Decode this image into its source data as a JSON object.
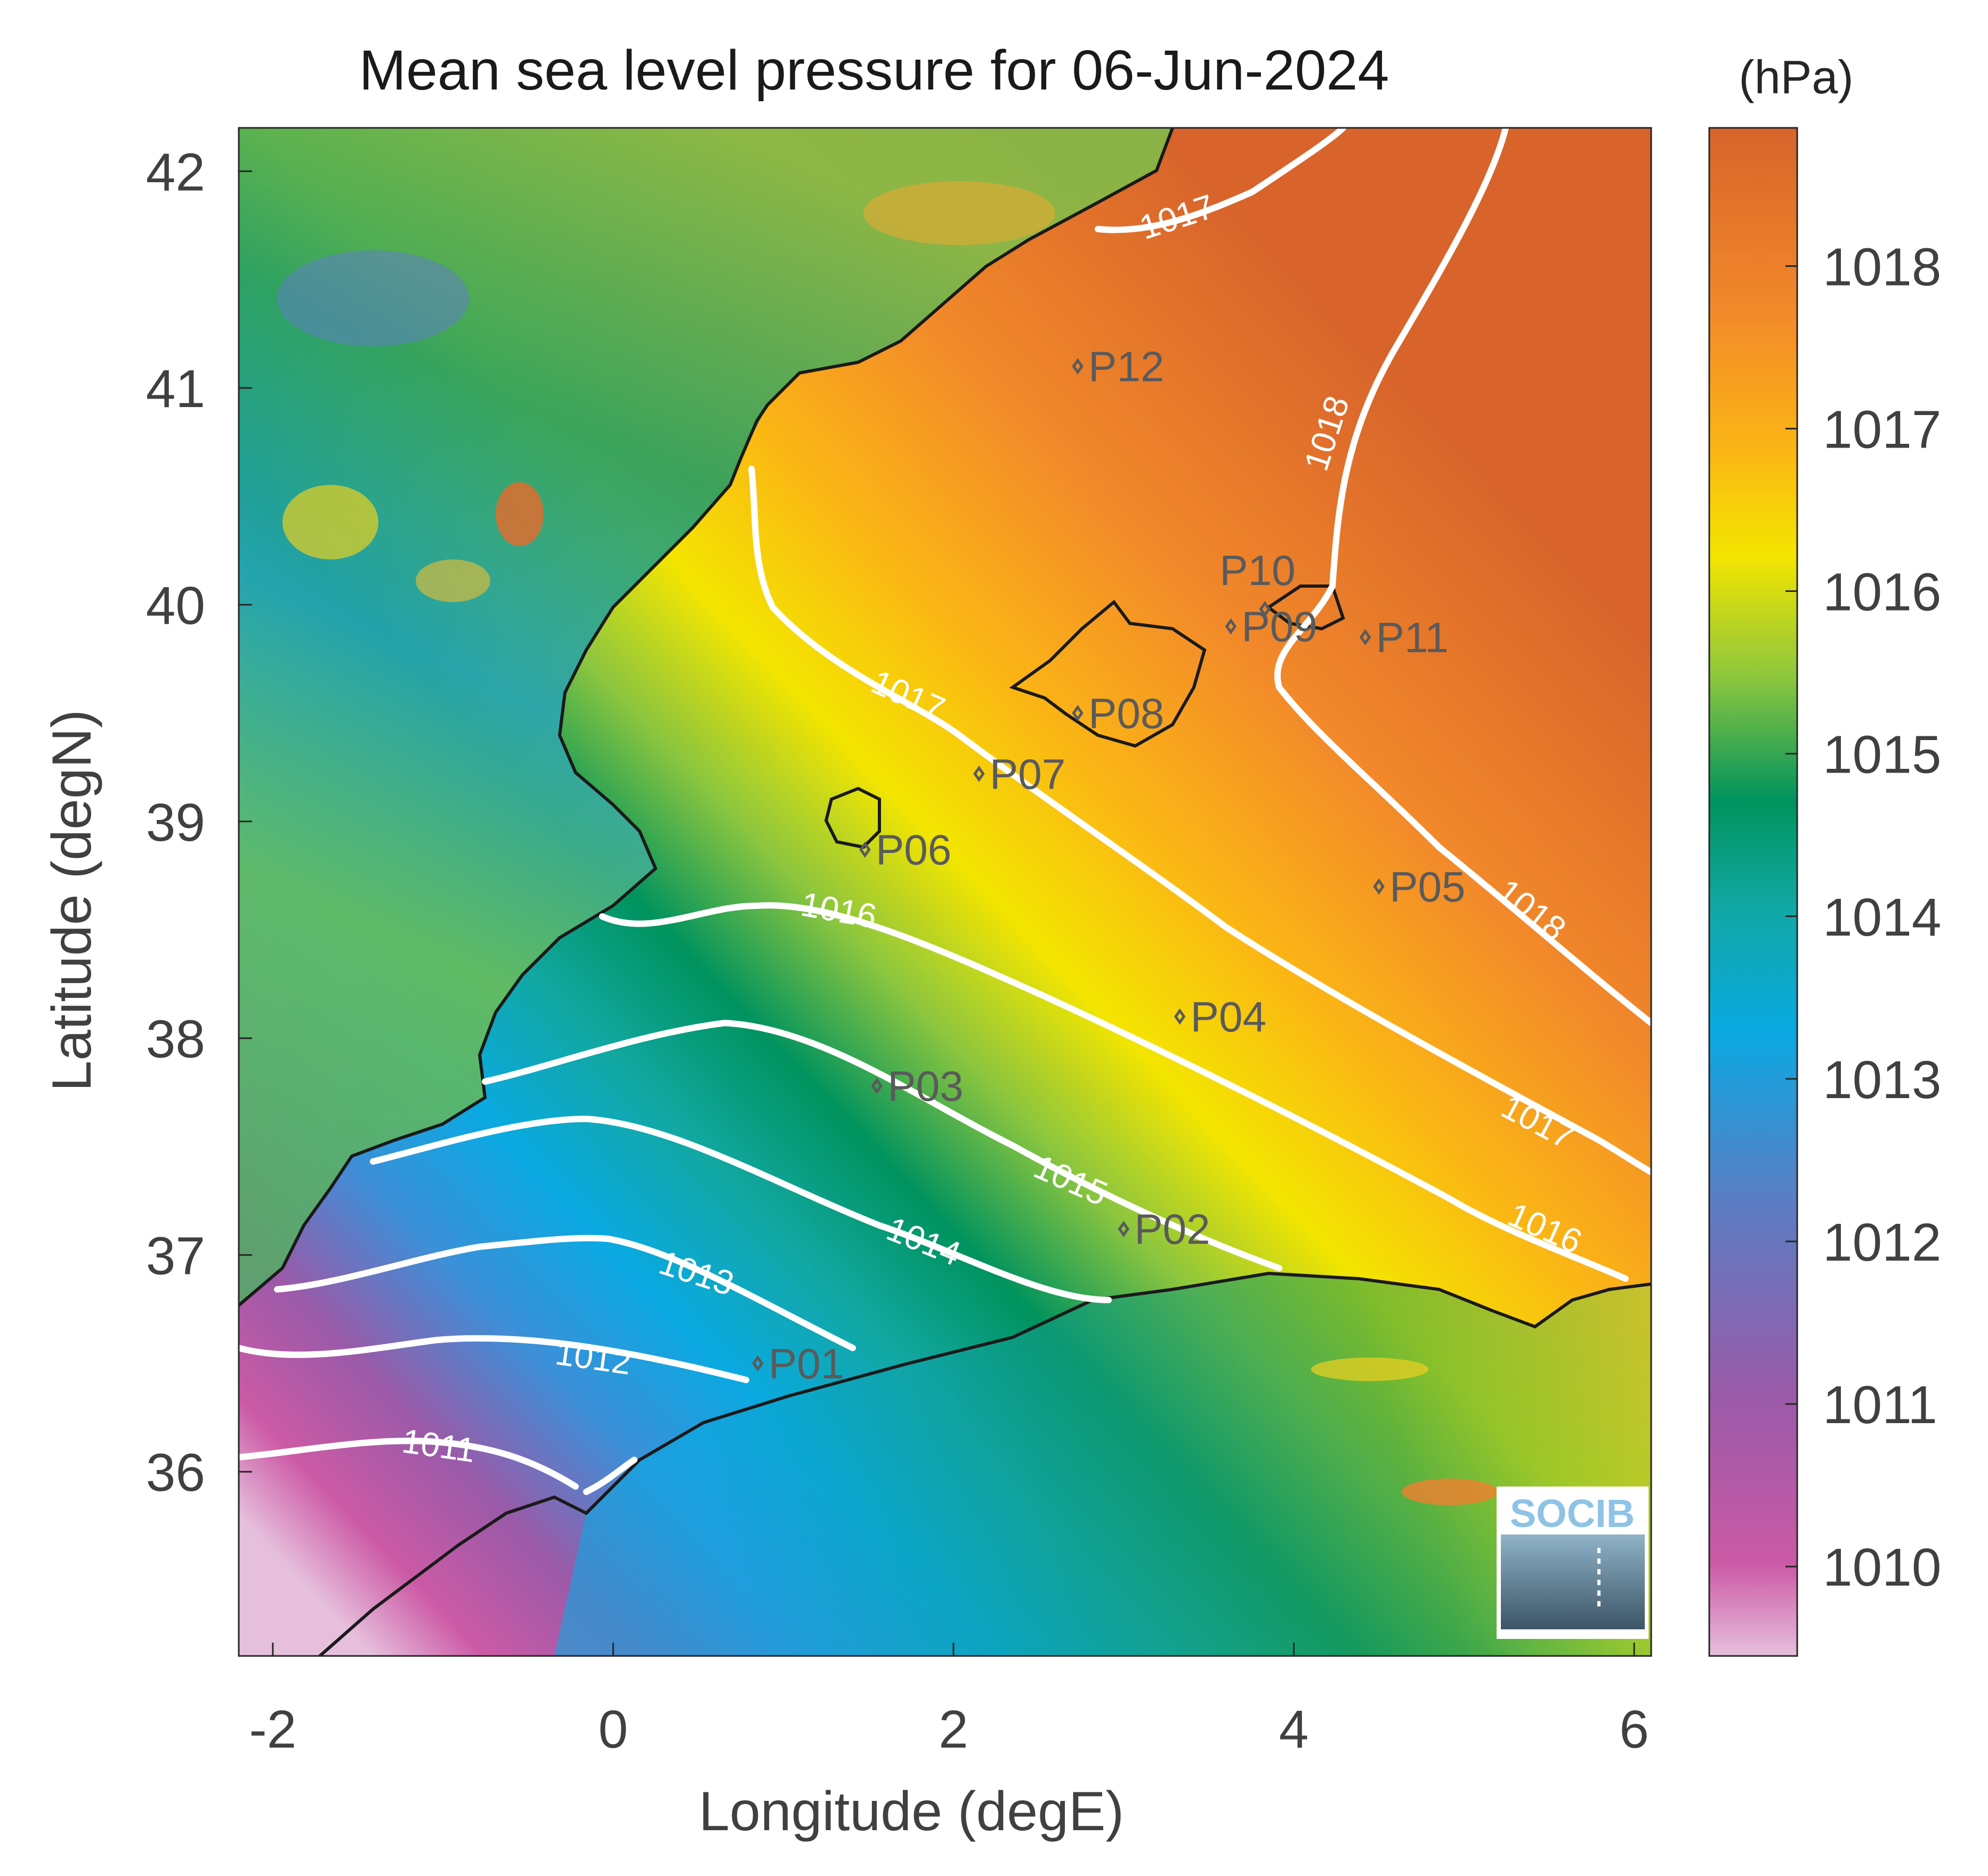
{
  "title": "Mean sea level pressure for 06-Jun-2024",
  "map": {
    "x_label": "Longitude (degE)",
    "y_label": "Latitude (degN)",
    "x_range": [
      -2.2,
      6.1
    ],
    "y_range": [
      35.15,
      42.2
    ],
    "x_ticks": [
      "-2",
      "0",
      "2",
      "4",
      "6"
    ],
    "y_ticks": [
      "36",
      "37",
      "38",
      "39",
      "40",
      "41",
      "42"
    ]
  },
  "colorbar": {
    "unit": "(hPa)",
    "range": [
      1009.45,
      1018.85
    ],
    "ticks": [
      "1010",
      "1011",
      "1012",
      "1013",
      "1014",
      "1015",
      "1016",
      "1017",
      "1018"
    ],
    "colormap": [
      "#e2b8d8",
      "#cc59a8",
      "#9a5aa8",
      "#5a7ec4",
      "#0aa9e2",
      "#10a8a8",
      "#00935e",
      "#8cc63e",
      "#f3e500",
      "#fbb515",
      "#f2892a",
      "#d8642b"
    ]
  },
  "isobar_labels": [
    "1011",
    "1012",
    "1013",
    "1014",
    "1015",
    "1016",
    "1016",
    "1017",
    "1017",
    "1017",
    "1018",
    "1018"
  ],
  "points": [
    {
      "name": "P01",
      "lon": 0.85,
      "lat": 36.5
    },
    {
      "name": "P02",
      "lon": 3.0,
      "lat": 37.12
    },
    {
      "name": "P03",
      "lon": 1.55,
      "lat": 37.78
    },
    {
      "name": "P04",
      "lon": 3.33,
      "lat": 38.1
    },
    {
      "name": "P05",
      "lon": 4.5,
      "lat": 38.7
    },
    {
      "name": "P06",
      "lon": 1.48,
      "lat": 38.87
    },
    {
      "name": "P07",
      "lon": 2.15,
      "lat": 39.22
    },
    {
      "name": "P08",
      "lon": 2.73,
      "lat": 39.5
    },
    {
      "name": "P09",
      "lon": 3.63,
      "lat": 39.9
    },
    {
      "name": "P10",
      "lon": 3.83,
      "lat": 39.98
    },
    {
      "name": "P11",
      "lon": 4.42,
      "lat": 39.85
    },
    {
      "name": "P12",
      "lon": 2.73,
      "lat": 41.1
    }
  ],
  "logo": "SOCIB"
}
